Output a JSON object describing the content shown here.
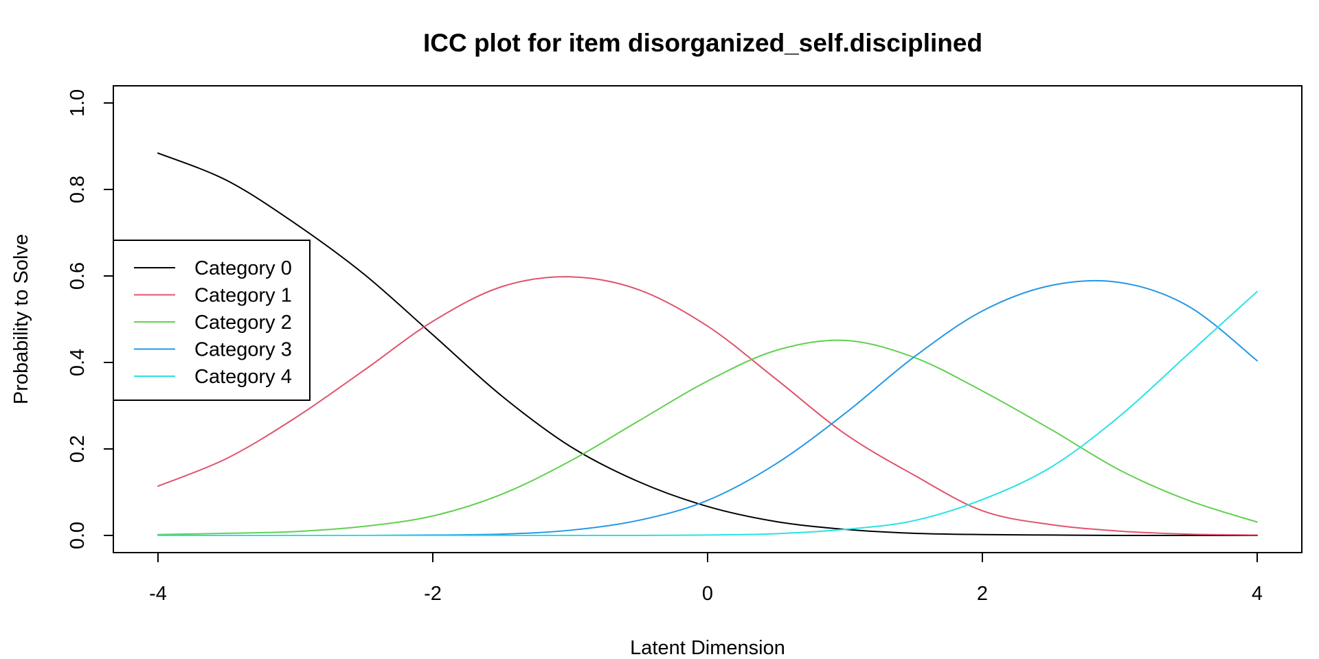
{
  "chart_data": {
    "type": "line",
    "title": "ICC plot for item disorganized_self.disciplined",
    "xlabel": "Latent Dimension",
    "ylabel": "Probability to Solve",
    "xlim": [
      -4,
      4
    ],
    "ylim": [
      0,
      1
    ],
    "x_ticks": [
      "-4",
      "-2",
      "0",
      "2",
      "4"
    ],
    "y_ticks": [
      "0.0",
      "0.2",
      "0.4",
      "0.6",
      "0.8",
      "1.0"
    ],
    "grid": false,
    "legend_position": "left",
    "x": [
      -4,
      -3.5,
      -3,
      -2.5,
      -2,
      -1.5,
      -1,
      -0.5,
      0,
      0.5,
      1,
      1.5,
      2,
      2.5,
      3,
      3.5,
      4
    ],
    "series": [
      {
        "name": "Category 0",
        "color": "#000000",
        "values": [
          0.884,
          0.821,
          0.721,
          0.604,
          0.464,
          0.323,
          0.206,
          0.124,
          0.067,
          0.032,
          0.014,
          0.005,
          0.002,
          0.001,
          0.0,
          0.0,
          0.0
        ]
      },
      {
        "name": "Category 1",
        "color": "#DF536B",
        "values": [
          0.114,
          0.178,
          0.272,
          0.382,
          0.495,
          0.575,
          0.598,
          0.568,
          0.484,
          0.361,
          0.235,
          0.14,
          0.057,
          0.025,
          0.01,
          0.003,
          0.001
        ]
      },
      {
        "name": "Category 2",
        "color": "#61D04F",
        "values": [
          0.002,
          0.005,
          0.009,
          0.021,
          0.045,
          0.095,
          0.172,
          0.265,
          0.357,
          0.428,
          0.451,
          0.412,
          0.334,
          0.245,
          0.151,
          0.081,
          0.031
        ]
      },
      {
        "name": "Category 3",
        "color": "#2297E6",
        "values": [
          0.0,
          0.0,
          0.0,
          0.0,
          0.001,
          0.003,
          0.012,
          0.035,
          0.081,
          0.166,
          0.282,
          0.412,
          0.519,
          0.578,
          0.585,
          0.53,
          0.404
        ]
      },
      {
        "name": "Category 4",
        "color": "#28E2E5",
        "values": [
          0.0,
          0.0,
          0.0,
          0.0,
          0.0,
          0.0,
          0.0,
          0.0,
          0.001,
          0.004,
          0.014,
          0.034,
          0.083,
          0.158,
          0.276,
          0.42,
          0.564
        ]
      }
    ]
  }
}
